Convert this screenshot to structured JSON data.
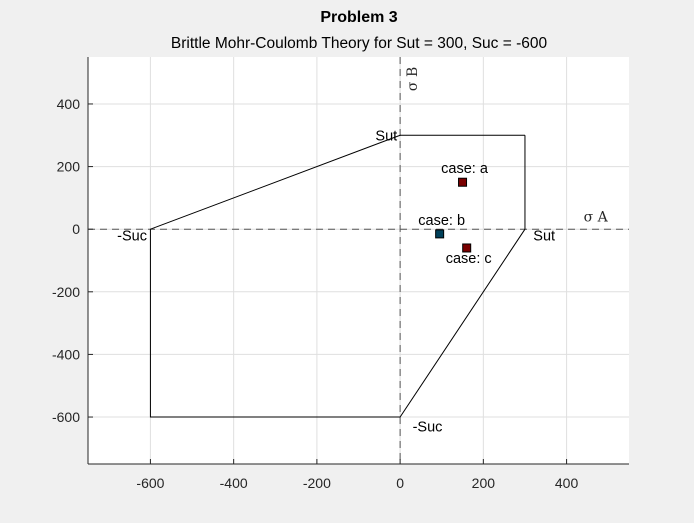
{
  "chart_data": {
    "type": "line",
    "title": "Problem 3",
    "subtitle": "Brittle Mohr-Coulomb Theory for Sut = 300, Suc = -600",
    "xlim": [
      -750,
      550
    ],
    "ylim": [
      -750,
      550
    ],
    "xticks": [
      -600,
      -400,
      -200,
      0,
      200,
      400
    ],
    "yticks": [
      -600,
      -400,
      -200,
      0,
      200,
      400
    ],
    "grid": true,
    "axis_names": {
      "x": "σ A",
      "y": "σ B"
    },
    "envelope": [
      [
        300,
        300
      ],
      [
        300,
        0
      ],
      [
        0,
        -600
      ],
      [
        -600,
        -600
      ],
      [
        -600,
        0
      ],
      [
        0,
        300
      ],
      [
        300,
        300
      ]
    ],
    "reference_lines": [
      {
        "axis": "x",
        "value": 0
      },
      {
        "axis": "y",
        "value": 0
      }
    ],
    "points": [
      {
        "label": "case: a",
        "x": 150,
        "y": 150,
        "face": "#7a0000",
        "edge": "#000000"
      },
      {
        "label": "case: b",
        "x": 95,
        "y": -15,
        "face": "#00405a",
        "edge": "#000000"
      },
      {
        "label": "case: c",
        "x": 160,
        "y": -60,
        "face": "#7a0000",
        "edge": "#000000"
      }
    ],
    "annotations": [
      {
        "text": "Sut",
        "x": -7,
        "y": 300
      },
      {
        "text": "Sut",
        "x": 320,
        "y": -20
      },
      {
        "text": "-Suc",
        "x": -680,
        "y": -20
      },
      {
        "text": "-Suc",
        "x": 30,
        "y": -630
      }
    ]
  },
  "colors": {
    "figure_bg": "#f0f0f0",
    "axes_bg": "#ffffff",
    "grid": "#dfdfdf",
    "axis": "#262626",
    "envelope": "#000000"
  }
}
